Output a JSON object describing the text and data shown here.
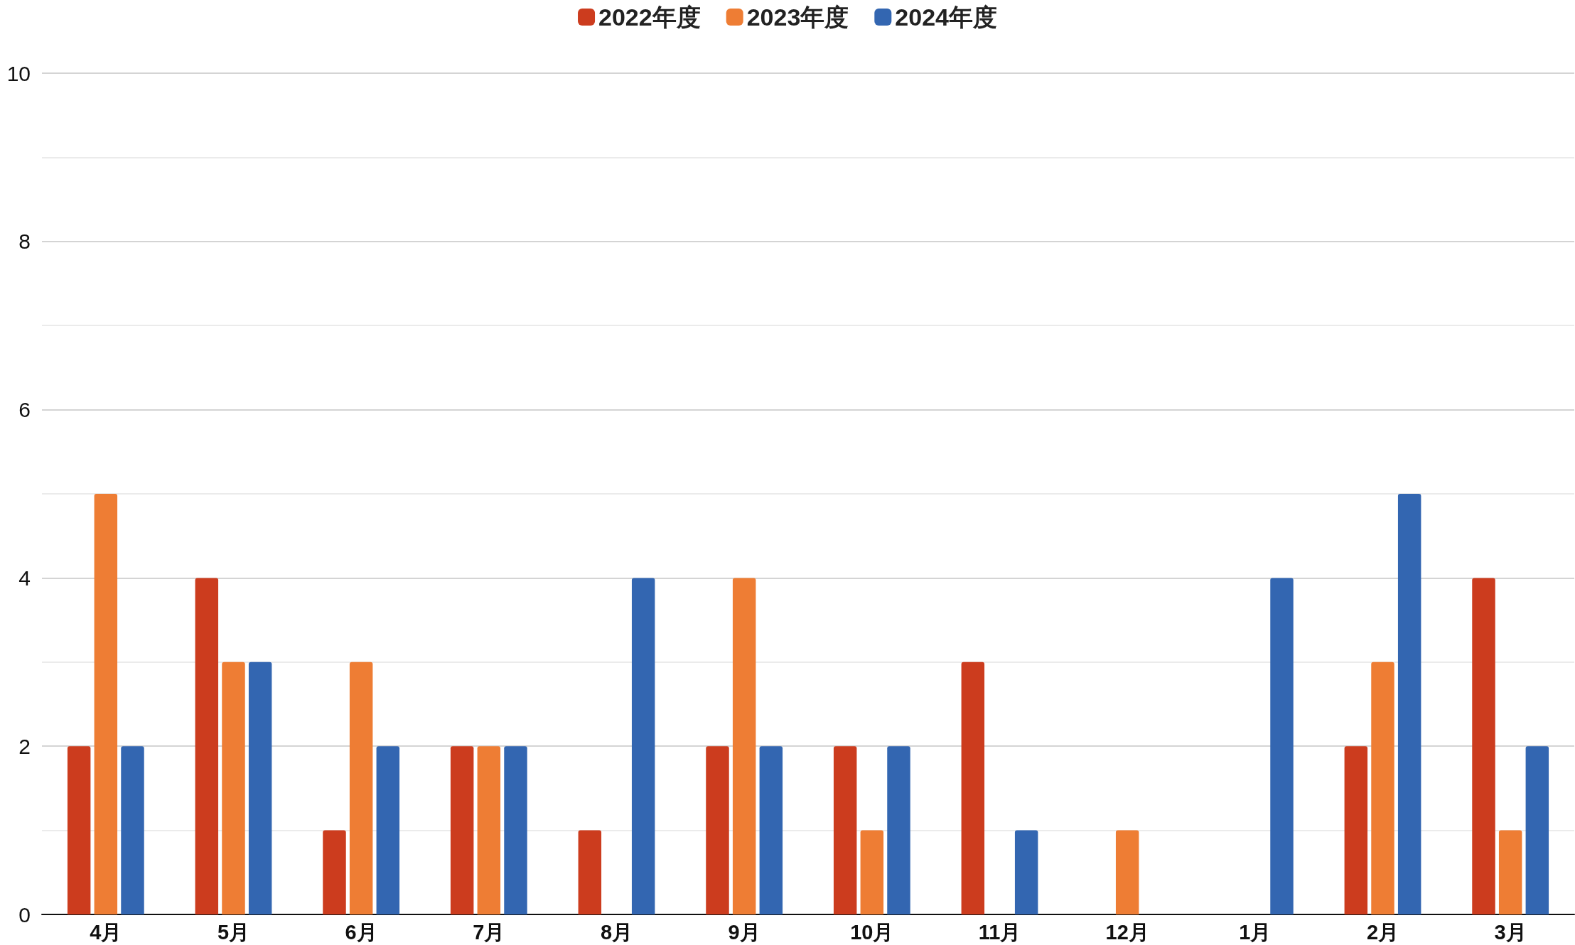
{
  "chart_data": {
    "type": "bar",
    "categories": [
      "4月",
      "5月",
      "6月",
      "7月",
      "8月",
      "9月",
      "10月",
      "11月",
      "12月",
      "1月",
      "2月",
      "3月"
    ],
    "series": [
      {
        "name": "2022年度",
        "color": "#cc3c1e",
        "values": [
          2,
          4,
          1,
          2,
          1,
          2,
          2,
          3,
          null,
          null,
          2,
          4
        ]
      },
      {
        "name": "2023年度",
        "color": "#ee7d34",
        "values": [
          5,
          3,
          3,
          2,
          null,
          4,
          1,
          null,
          1,
          null,
          3,
          1
        ]
      },
      {
        "name": "2024年度",
        "color": "#3366b1",
        "values": [
          2,
          3,
          2,
          2,
          4,
          2,
          2,
          1,
          null,
          4,
          5,
          2
        ]
      }
    ],
    "ylim": [
      0,
      10
    ],
    "yticks": [
      0,
      {
        "value": 1,
        "label": null
      },
      2,
      {
        "value": 3,
        "label": null
      },
      4,
      {
        "value": 5,
        "label": null
      },
      6,
      {
        "value": 7,
        "label": null
      },
      8,
      {
        "value": 9,
        "label": null
      },
      10
    ],
    "grid": true,
    "legend": "top"
  }
}
